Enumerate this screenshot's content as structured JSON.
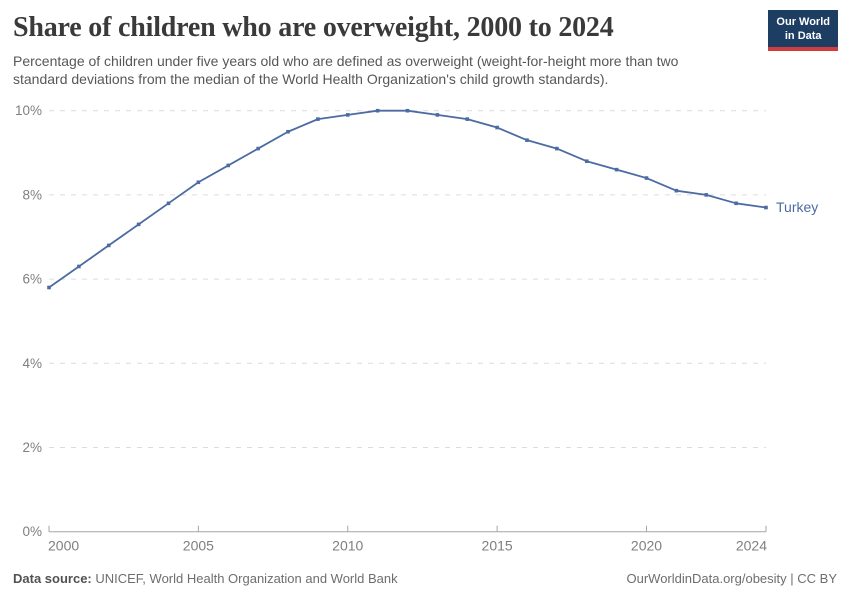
{
  "header": {
    "title": "Share of children who are overweight, 2000 to 2024",
    "subtitle_lines": [
      "Percentage of children under five years old who are defined as overweight (weight-for-height more than two",
      "standard deviations from the median of the World Health Organization's child growth standards)."
    ],
    "logo": {
      "line1": "Our World",
      "line2": "in Data"
    }
  },
  "footer": {
    "datasource_label": "Data source:",
    "datasource_value": " UNICEF, World Health Organization and World Bank",
    "rights": "OurWorldinData.org/obesity | CC BY"
  },
  "colors": {
    "line": "#4c6ba3",
    "grid": "#dcdcdc",
    "axis": "#a6a6a6",
    "tick_label": "#7f7f7f",
    "logo_bg": "#1d3d63",
    "logo_stripe": "#cf3d3e"
  },
  "chart_data": {
    "type": "line",
    "title": "Share of children who are overweight, 2000 to 2024",
    "xlabel": "",
    "ylabel": "",
    "unit": "%",
    "x": [
      2000,
      2001,
      2002,
      2003,
      2004,
      2005,
      2006,
      2007,
      2008,
      2009,
      2010,
      2011,
      2012,
      2013,
      2014,
      2015,
      2016,
      2017,
      2018,
      2019,
      2020,
      2021,
      2022,
      2023,
      2024
    ],
    "series": [
      {
        "name": "Turkey",
        "color": "#4c6ba3",
        "values": [
          5.8,
          6.3,
          6.8,
          7.3,
          7.8,
          8.3,
          8.7,
          9.1,
          9.5,
          9.8,
          9.9,
          10.0,
          10.0,
          9.9,
          9.8,
          9.6,
          9.3,
          9.1,
          8.8,
          8.6,
          8.4,
          8.1,
          8.0,
          7.8,
          7.7
        ]
      }
    ],
    "xlim": [
      2000,
      2024
    ],
    "ylim": [
      0,
      10
    ],
    "x_ticks": [
      2000,
      2005,
      2010,
      2015,
      2020,
      2024
    ],
    "y_ticks": [
      0,
      2,
      4,
      6,
      8,
      10
    ],
    "y_tick_suffix": "%",
    "grid": "horizontal-dashed",
    "legend_position": "end-of-line-label",
    "end_label": "Turkey"
  }
}
